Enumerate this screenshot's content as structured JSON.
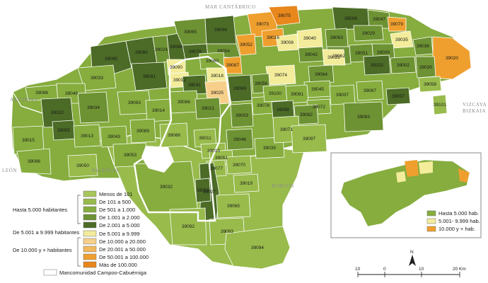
{
  "colors": {
    "c1": "#a8c65a",
    "c2": "#98bb4c",
    "c3": "#86ad3e",
    "c4": "#6d9233",
    "c5": "#4b6b26",
    "m1": "#f3ec9b",
    "b1": "#f6d08a",
    "b2": "#f2b85c",
    "b3": "#ef9f2e",
    "b4": "#e8871c",
    "sea_text": "#8c8c8c"
  },
  "neighbors": {
    "sea": "MAR CANTÁBRICO",
    "west": "ASTURIAS",
    "east_1": "VIZCAYA",
    "east_2": "BIZKAIA",
    "southwest": "LEÓN",
    "south_1": "PALENCIA",
    "south_2": "BURGOS"
  },
  "municipalities": [
    {
      "code": "39006",
      "cls": "c5"
    },
    {
      "code": "39047",
      "cls": "c4"
    },
    {
      "code": "39075",
      "cls": "b4"
    },
    {
      "code": "39073",
      "cls": "b3"
    },
    {
      "code": "39065",
      "cls": "c4"
    },
    {
      "code": "39044",
      "cls": "c5"
    },
    {
      "code": "39016",
      "cls": "b3"
    },
    {
      "code": "39052",
      "cls": "b3"
    },
    {
      "code": "39095",
      "cls": "c5"
    },
    {
      "code": "39080",
      "cls": "c5"
    },
    {
      "code": "39024",
      "cls": "c4"
    },
    {
      "code": "39068",
      "cls": "c5"
    },
    {
      "code": "39076",
      "cls": "c5"
    },
    {
      "code": "39054",
      "cls": "c4"
    },
    {
      "code": "39008",
      "cls": "m1"
    },
    {
      "code": "39040",
      "cls": "m1"
    },
    {
      "code": "39042",
      "cls": "c4"
    },
    {
      "code": "39063",
      "cls": "c4"
    },
    {
      "code": "39029",
      "cls": "c4"
    },
    {
      "code": "39079",
      "cls": "b3"
    },
    {
      "code": "39035",
      "cls": "m1"
    },
    {
      "code": "39036",
      "cls": "c4"
    },
    {
      "code": "39020",
      "cls": "b3"
    },
    {
      "code": "39090",
      "cls": "m1"
    },
    {
      "code": "39060",
      "cls": "c3"
    },
    {
      "code": "39087",
      "cls": "b3"
    },
    {
      "code": "39012",
      "cls": "m1"
    },
    {
      "code": "39018",
      "cls": "m1"
    },
    {
      "code": "39028",
      "cls": "m1"
    },
    {
      "code": "39051",
      "cls": "c4"
    },
    {
      "code": "39009",
      "cls": "c4"
    },
    {
      "code": "39062",
      "cls": "c4"
    },
    {
      "code": "39033",
      "cls": "c3"
    },
    {
      "code": "39091",
      "cls": "c5"
    },
    {
      "code": "39041",
      "cls": "c5"
    },
    {
      "code": "39074",
      "cls": "m1"
    },
    {
      "code": "39056",
      "cls": "c4"
    },
    {
      "code": "39064",
      "cls": "c4"
    },
    {
      "code": "39102",
      "cls": "c5"
    },
    {
      "code": "39002",
      "cls": "c4"
    },
    {
      "code": "39030",
      "cls": "c4"
    },
    {
      "code": "39025",
      "cls": "b1"
    },
    {
      "code": "39069",
      "cls": "c5"
    },
    {
      "code": "39045",
      "cls": "c3"
    },
    {
      "code": "39067",
      "cls": "c3"
    },
    {
      "code": "39058",
      "cls": "c2"
    },
    {
      "code": "39057",
      "cls": "c5"
    },
    {
      "code": "39088",
      "cls": "c3"
    },
    {
      "code": "39049",
      "cls": "c3"
    },
    {
      "code": "39034",
      "cls": "c4"
    },
    {
      "code": "39063b",
      "cls": "c3",
      "label": "39063"
    },
    {
      "code": "39014",
      "cls": "c3"
    },
    {
      "code": "39066",
      "cls": "c3"
    },
    {
      "code": "39021",
      "cls": "c4"
    },
    {
      "code": "39003",
      "cls": "c4"
    },
    {
      "code": "39078",
      "cls": "c3"
    },
    {
      "code": "39100",
      "cls": "c3"
    },
    {
      "code": "39081",
      "cls": "c3"
    },
    {
      "code": "39007",
      "cls": "c3"
    },
    {
      "code": "39101",
      "cls": "c2"
    },
    {
      "code": "39022",
      "cls": "c5"
    },
    {
      "code": "39098",
      "cls": "c5"
    },
    {
      "code": "39072",
      "cls": "c3"
    },
    {
      "code": "39082",
      "cls": "c4"
    },
    {
      "code": "39083",
      "cls": "c4"
    },
    {
      "code": "39089",
      "cls": "c3"
    },
    {
      "code": "39086",
      "cls": "c2"
    },
    {
      "code": "39011",
      "cls": "c2"
    },
    {
      "code": "39046",
      "cls": "c4"
    },
    {
      "code": "39015",
      "cls": "c3"
    },
    {
      "code": "39055",
      "cls": "c5"
    },
    {
      "code": "39013",
      "cls": "c3"
    },
    {
      "code": "39043",
      "cls": "c3"
    },
    {
      "code": "39010",
      "cls": "c2"
    },
    {
      "code": "39039",
      "cls": "c3"
    },
    {
      "code": "39071",
      "cls": "c2"
    },
    {
      "code": "39097",
      "cls": "c2"
    },
    {
      "code": "39096",
      "cls": "c3"
    },
    {
      "code": "39053",
      "cls": "c3"
    },
    {
      "code": "39051b",
      "cls": "c2",
      "label": "39051"
    },
    {
      "code": "39050",
      "cls": "c2"
    },
    {
      "code": "39070",
      "cls": "c2"
    },
    {
      "code": "39077",
      "cls": "c2"
    },
    {
      "code": "39027",
      "cls": "c5"
    },
    {
      "code": "39019",
      "cls": "c2"
    },
    {
      "code": "39032",
      "cls": "c3"
    },
    {
      "code": "39059",
      "cls": "c5"
    },
    {
      "code": "39092",
      "cls": "c2"
    },
    {
      "code": "39065b",
      "cls": "c2",
      "label": "39065"
    },
    {
      "code": "39093",
      "cls": "c2"
    },
    {
      "code": "39094",
      "cls": "c2"
    },
    {
      "code": "39001",
      "cls": "c2"
    }
  ],
  "legend": {
    "group1_label": "Hasta 5.000 habitantes",
    "group2_label": "De 5.001 a 9.999 habitantes",
    "group3_label": "De 10.000 y + habitantes",
    "items": [
      {
        "label": "Menos de 101",
        "cls": "c1"
      },
      {
        "label": "De 101 a 500",
        "cls": "c2"
      },
      {
        "label": "De 501 a 1.000",
        "cls": "c3"
      },
      {
        "label": "De 1.001 a 2.000",
        "cls": "c4"
      },
      {
        "label": "De 2.001 a 5.000",
        "cls": "c5"
      },
      {
        "label": "De 5.001 a 9.999",
        "cls": "m1"
      },
      {
        "label": "De 10.000 a 20.000",
        "cls": "b1"
      },
      {
        "label": "De 20.001 a 50.000",
        "cls": "b2"
      },
      {
        "label": "De 50.001 a 100.000",
        "cls": "b3"
      },
      {
        "label": "Más de 100.000",
        "cls": "b4"
      }
    ],
    "mancomunidad": "Mancomunidad Campoo-Cabuérniga"
  },
  "inset": {
    "legend": [
      {
        "label": "Hasta 5.000 hab.",
        "color": "#86ad3e"
      },
      {
        "label": "5.001- 9.999 hab.",
        "color": "#f3ec9b"
      },
      {
        "label": "10.000 y + hab.",
        "color": "#ef9f2e"
      }
    ]
  },
  "scale": {
    "labels": [
      "10",
      "0",
      "10",
      "20 Km"
    ],
    "north": "N"
  }
}
